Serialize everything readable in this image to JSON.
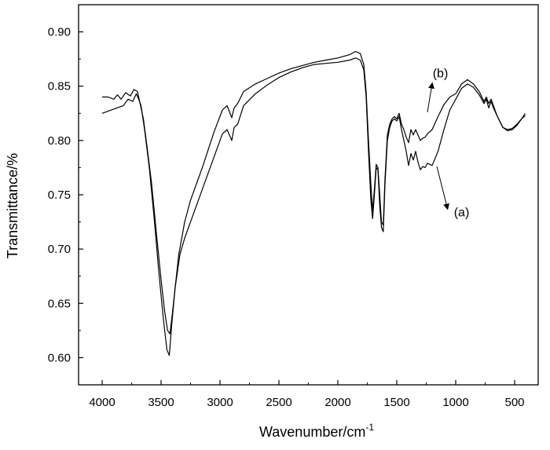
{
  "chart_data": {
    "type": "line",
    "title": "",
    "xlabel": "Wavenumber/cm",
    "xlabel_superscript": "-1",
    "ylabel": "Transmittance/%",
    "xlim": [
      4200,
      300
    ],
    "ylim": [
      0.575,
      0.925
    ],
    "x_reversed": true,
    "grid": false,
    "legend": "none",
    "xticks": [
      4000,
      3500,
      3000,
      2500,
      2000,
      1500,
      1000,
      500
    ],
    "xtick_labels": [
      "4000",
      "3500",
      "3000",
      "2500",
      "2000",
      "1500",
      "1000",
      "500"
    ],
    "yticks": [
      0.6,
      0.65,
      0.7,
      0.75,
      0.8,
      0.85,
      0.9
    ],
    "ytick_labels": [
      "0.60",
      "0.65",
      "0.70",
      "0.75",
      "0.80",
      "0.85",
      "0.90"
    ],
    "annotations": [
      {
        "text": "(b)",
        "target": "b",
        "x": 1130,
        "y": 0.858,
        "point_x": 1240,
        "point_y": 0.826
      },
      {
        "text": "(a)",
        "target": "a",
        "x": 950,
        "y": 0.733,
        "point_x": 1160,
        "point_y": 0.776
      }
    ],
    "series": [
      {
        "id": "a",
        "color": "#000000",
        "points": [
          [
            4000,
            0.825
          ],
          [
            3900,
            0.829
          ],
          [
            3820,
            0.832
          ],
          [
            3780,
            0.838
          ],
          [
            3740,
            0.836
          ],
          [
            3710,
            0.843
          ],
          [
            3690,
            0.838
          ],
          [
            3670,
            0.832
          ],
          [
            3640,
            0.81
          ],
          [
            3600,
            0.775
          ],
          [
            3560,
            0.73
          ],
          [
            3520,
            0.68
          ],
          [
            3480,
            0.635
          ],
          [
            3450,
            0.607
          ],
          [
            3430,
            0.602
          ],
          [
            3410,
            0.63
          ],
          [
            3380,
            0.665
          ],
          [
            3340,
            0.695
          ],
          [
            3300,
            0.71
          ],
          [
            3250,
            0.725
          ],
          [
            3150,
            0.755
          ],
          [
            3050,
            0.785
          ],
          [
            2980,
            0.806
          ],
          [
            2940,
            0.81
          ],
          [
            2900,
            0.8
          ],
          [
            2880,
            0.812
          ],
          [
            2850,
            0.815
          ],
          [
            2800,
            0.832
          ],
          [
            2700,
            0.843
          ],
          [
            2600,
            0.851
          ],
          [
            2500,
            0.858
          ],
          [
            2400,
            0.863
          ],
          [
            2300,
            0.867
          ],
          [
            2200,
            0.87
          ],
          [
            2100,
            0.871
          ],
          [
            2000,
            0.872
          ],
          [
            1900,
            0.874
          ],
          [
            1850,
            0.876
          ],
          [
            1810,
            0.874
          ],
          [
            1780,
            0.865
          ],
          [
            1760,
            0.84
          ],
          [
            1740,
            0.79
          ],
          [
            1720,
            0.745
          ],
          [
            1705,
            0.728
          ],
          [
            1690,
            0.75
          ],
          [
            1675,
            0.775
          ],
          [
            1660,
            0.773
          ],
          [
            1645,
            0.74
          ],
          [
            1630,
            0.72
          ],
          [
            1615,
            0.716
          ],
          [
            1600,
            0.76
          ],
          [
            1580,
            0.8
          ],
          [
            1560,
            0.812
          ],
          [
            1540,
            0.818
          ],
          [
            1520,
            0.82
          ],
          [
            1500,
            0.818
          ],
          [
            1480,
            0.822
          ],
          [
            1460,
            0.81
          ],
          [
            1440,
            0.8
          ],
          [
            1420,
            0.79
          ],
          [
            1400,
            0.777
          ],
          [
            1380,
            0.788
          ],
          [
            1360,
            0.782
          ],
          [
            1340,
            0.79
          ],
          [
            1320,
            0.78
          ],
          [
            1300,
            0.773
          ],
          [
            1280,
            0.776
          ],
          [
            1260,
            0.775
          ],
          [
            1240,
            0.779
          ],
          [
            1220,
            0.778
          ],
          [
            1200,
            0.777
          ],
          [
            1150,
            0.79
          ],
          [
            1100,
            0.81
          ],
          [
            1050,
            0.828
          ],
          [
            1000,
            0.838
          ],
          [
            950,
            0.848
          ],
          [
            900,
            0.852
          ],
          [
            850,
            0.849
          ],
          [
            800,
            0.842
          ],
          [
            760,
            0.834
          ],
          [
            740,
            0.838
          ],
          [
            720,
            0.83
          ],
          [
            700,
            0.836
          ],
          [
            680,
            0.83
          ],
          [
            650,
            0.823
          ],
          [
            600,
            0.812
          ],
          [
            560,
            0.809
          ],
          [
            520,
            0.81
          ],
          [
            480,
            0.814
          ],
          [
            440,
            0.82
          ],
          [
            410,
            0.823
          ]
        ]
      },
      {
        "id": "b",
        "color": "#000000",
        "points": [
          [
            4000,
            0.84
          ],
          [
            3950,
            0.84
          ],
          [
            3900,
            0.838
          ],
          [
            3870,
            0.842
          ],
          [
            3840,
            0.838
          ],
          [
            3800,
            0.844
          ],
          [
            3760,
            0.841
          ],
          [
            3730,
            0.847
          ],
          [
            3700,
            0.845
          ],
          [
            3680,
            0.835
          ],
          [
            3650,
            0.82
          ],
          [
            3620,
            0.795
          ],
          [
            3580,
            0.76
          ],
          [
            3540,
            0.715
          ],
          [
            3500,
            0.672
          ],
          [
            3470,
            0.643
          ],
          [
            3445,
            0.625
          ],
          [
            3425,
            0.622
          ],
          [
            3405,
            0.64
          ],
          [
            3380,
            0.665
          ],
          [
            3350,
            0.695
          ],
          [
            3300,
            0.725
          ],
          [
            3250,
            0.745
          ],
          [
            3150,
            0.775
          ],
          [
            3050,
            0.808
          ],
          [
            2980,
            0.828
          ],
          [
            2940,
            0.832
          ],
          [
            2900,
            0.821
          ],
          [
            2880,
            0.83
          ],
          [
            2850,
            0.834
          ],
          [
            2800,
            0.845
          ],
          [
            2700,
            0.852
          ],
          [
            2600,
            0.857
          ],
          [
            2500,
            0.862
          ],
          [
            2400,
            0.866
          ],
          [
            2300,
            0.869
          ],
          [
            2200,
            0.872
          ],
          [
            2100,
            0.874
          ],
          [
            2000,
            0.876
          ],
          [
            1900,
            0.879
          ],
          [
            1850,
            0.882
          ],
          [
            1810,
            0.88
          ],
          [
            1780,
            0.87
          ],
          [
            1760,
            0.845
          ],
          [
            1740,
            0.8
          ],
          [
            1720,
            0.76
          ],
          [
            1705,
            0.735
          ],
          [
            1690,
            0.755
          ],
          [
            1675,
            0.778
          ],
          [
            1660,
            0.775
          ],
          [
            1645,
            0.75
          ],
          [
            1630,
            0.725
          ],
          [
            1615,
            0.722
          ],
          [
            1600,
            0.765
          ],
          [
            1580,
            0.805
          ],
          [
            1560,
            0.815
          ],
          [
            1540,
            0.82
          ],
          [
            1520,
            0.822
          ],
          [
            1500,
            0.82
          ],
          [
            1480,
            0.825
          ],
          [
            1460,
            0.815
          ],
          [
            1440,
            0.81
          ],
          [
            1420,
            0.803
          ],
          [
            1400,
            0.798
          ],
          [
            1380,
            0.81
          ],
          [
            1360,
            0.805
          ],
          [
            1340,
            0.81
          ],
          [
            1320,
            0.805
          ],
          [
            1300,
            0.8
          ],
          [
            1280,
            0.802
          ],
          [
            1260,
            0.803
          ],
          [
            1240,
            0.806
          ],
          [
            1220,
            0.808
          ],
          [
            1200,
            0.81
          ],
          [
            1150,
            0.822
          ],
          [
            1100,
            0.833
          ],
          [
            1050,
            0.84
          ],
          [
            1000,
            0.843
          ],
          [
            950,
            0.852
          ],
          [
            900,
            0.856
          ],
          [
            850,
            0.852
          ],
          [
            800,
            0.845
          ],
          [
            760,
            0.836
          ],
          [
            740,
            0.84
          ],
          [
            720,
            0.834
          ],
          [
            700,
            0.838
          ],
          [
            680,
            0.832
          ],
          [
            650,
            0.823
          ],
          [
            600,
            0.812
          ],
          [
            560,
            0.81
          ],
          [
            520,
            0.811
          ],
          [
            480,
            0.815
          ],
          [
            440,
            0.82
          ],
          [
            410,
            0.825
          ]
        ]
      }
    ]
  }
}
